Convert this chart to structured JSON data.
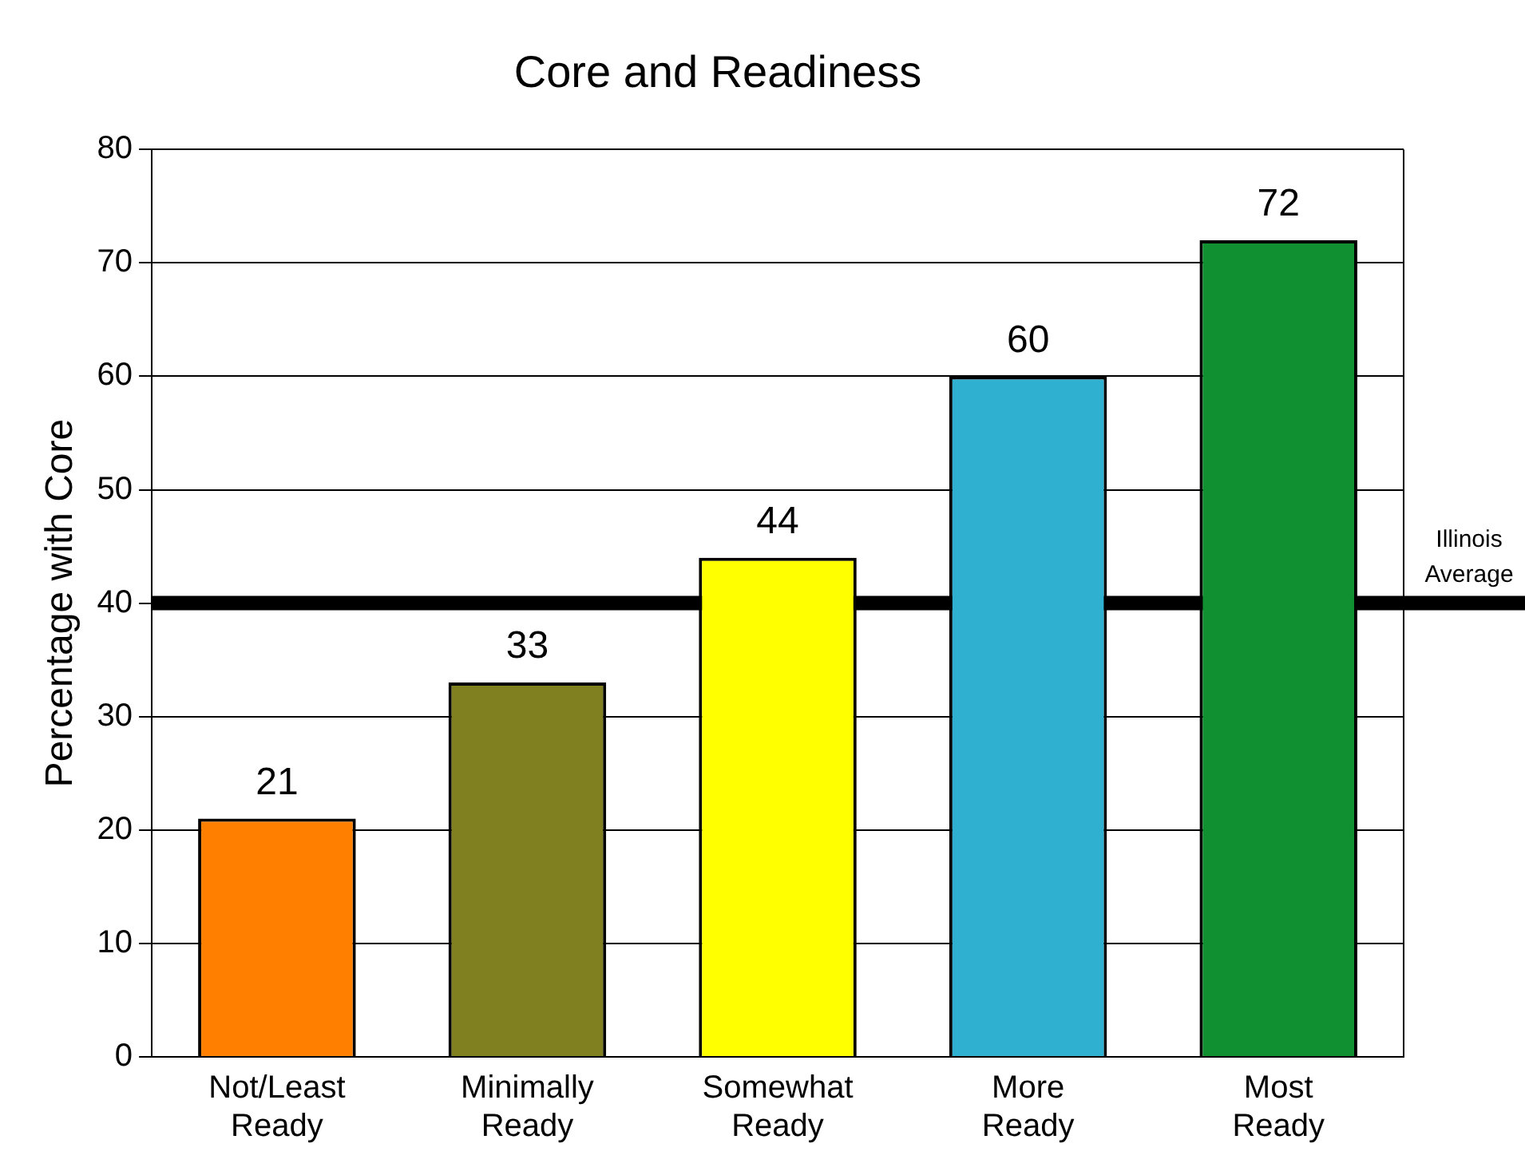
{
  "chart_data": {
    "type": "bar",
    "title": "Core and Readiness",
    "ylabel": "Percentage with Core",
    "categories": [
      "Not/Least Ready",
      "Minimally Ready",
      "Somewhat Ready",
      "More Ready",
      "Most Ready"
    ],
    "values": [
      21,
      33,
      44,
      60,
      72
    ],
    "colors": [
      "#ff8000",
      "#808020",
      "#ffff00",
      "#30b0d0",
      "#109030"
    ],
    "ylim": [
      0,
      80
    ],
    "yticks": [
      0,
      10,
      20,
      30,
      40,
      50,
      60,
      70,
      80
    ],
    "grid": "y",
    "legend": false,
    "data_labels": true,
    "ref_lines": [
      {
        "axis": "y",
        "value": 40,
        "label": "Illinois Average",
        "color": "#000000"
      }
    ]
  }
}
